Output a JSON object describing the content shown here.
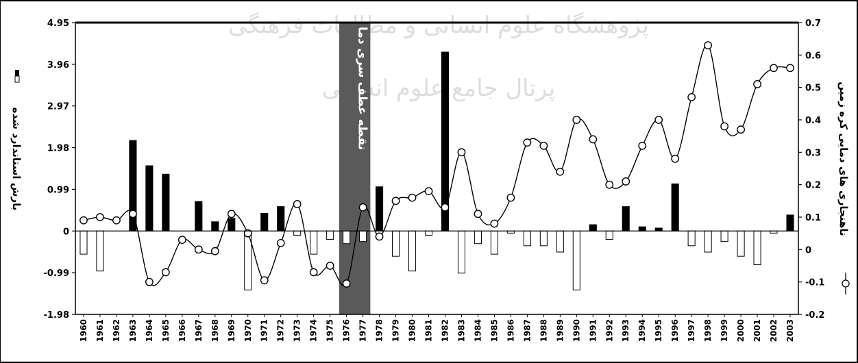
{
  "chart_data": {
    "type": "bar+line",
    "x": [
      1960,
      1961,
      1962,
      1963,
      1964,
      1965,
      1966,
      1967,
      1968,
      1969,
      1970,
      1971,
      1972,
      1973,
      1974,
      1975,
      1976,
      1977,
      1978,
      1979,
      1980,
      1981,
      1982,
      1983,
      1984,
      1985,
      1986,
      1987,
      1988,
      1989,
      1990,
      1991,
      1992,
      1993,
      1994,
      1995,
      1996,
      1997,
      1998,
      1999,
      2000,
      2001,
      2002,
      2003
    ],
    "x_tick_labels": [
      "1960",
      "1961",
      "1962",
      "1963",
      "1964",
      "1965",
      "1966",
      "1967",
      "1968",
      "1969",
      "1970",
      "1971",
      "1972",
      "1973",
      "1974",
      "1975",
      "1976",
      "1977",
      "1978",
      "1979",
      "1980",
      "1981",
      "1982",
      "1983",
      "1984",
      "1985",
      "1986",
      "1987",
      "1988",
      "1989",
      "1990",
      "1991",
      "1992",
      "1993",
      "1994",
      "1995",
      "1996",
      "1997",
      "1998",
      "1999",
      "2000",
      "2001",
      "2002",
      "2003"
    ],
    "series": [
      {
        "name": "بارش استاندارد شده",
        "kind": "bar",
        "axis": "left",
        "values": [
          -0.55,
          -0.95,
          0,
          2.15,
          1.55,
          1.35,
          0,
          0.7,
          0.22,
          0.3,
          -1.4,
          0.42,
          0.58,
          -0.1,
          -0.55,
          -0.2,
          -0.3,
          -0.25,
          1.05,
          -0.6,
          -0.95,
          -0.1,
          4.25,
          -1.0,
          -0.3,
          -0.55,
          -0.05,
          -0.35,
          -0.35,
          -0.5,
          -1.4,
          0.15,
          -0.2,
          0.58,
          0.1,
          0.07,
          1.12,
          -0.35,
          -0.5,
          -0.25,
          -0.6,
          -0.8,
          -0.05,
          0.38
        ]
      },
      {
        "name": "ناهنجاری های دمایی کره زمین",
        "kind": "line",
        "axis": "right",
        "values": [
          0.09,
          0.1,
          0.09,
          0.11,
          -0.1,
          -0.07,
          0.03,
          0.0,
          -0.005,
          0.11,
          0.05,
          -0.095,
          0.02,
          0.14,
          -0.07,
          -0.05,
          -0.105,
          0.13,
          0.04,
          0.15,
          0.16,
          0.18,
          0.13,
          0.3,
          0.11,
          0.08,
          0.16,
          0.33,
          0.32,
          0.24,
          0.4,
          0.34,
          0.2,
          0.21,
          0.32,
          0.4,
          0.28,
          0.47,
          0.63,
          0.38,
          0.37,
          0.51,
          0.56,
          0.56
        ]
      }
    ],
    "left_axis": {
      "min": -1.98,
      "max": 4.95,
      "ticks": [
        "4.95",
        "3.96",
        "2.97",
        "1.98",
        "0.99",
        "0",
        "-0.99",
        "-1.98"
      ]
    },
    "right_axis": {
      "min": -0.2,
      "max": 0.7,
      "ticks": [
        "0.7",
        "0.6",
        "0.5",
        "0.4",
        "0.3",
        "0.2",
        "0.1",
        "0",
        "-0.1",
        "-0.2"
      ]
    },
    "ylabel_left": "بارش استاندارد شده",
    "ylabel_right": "ناهنجاری های دمایی کره زمین",
    "annotation": {
      "text": "نقطه عطف سری دما",
      "from_year": 1976,
      "to_year": 1977
    },
    "watermark": [
      "پژوهشگاه علوم انسانی و مطالعات فرهنگی",
      "پرتال جامع علوم انسانی"
    ],
    "grid": false,
    "legend": "axis-titles",
    "colors": {
      "bar_positive": "#000000",
      "bar_negative": "#ffffff",
      "line": "#000000",
      "marker_fill": "#ffffff",
      "band": "#5a5a5a"
    }
  }
}
